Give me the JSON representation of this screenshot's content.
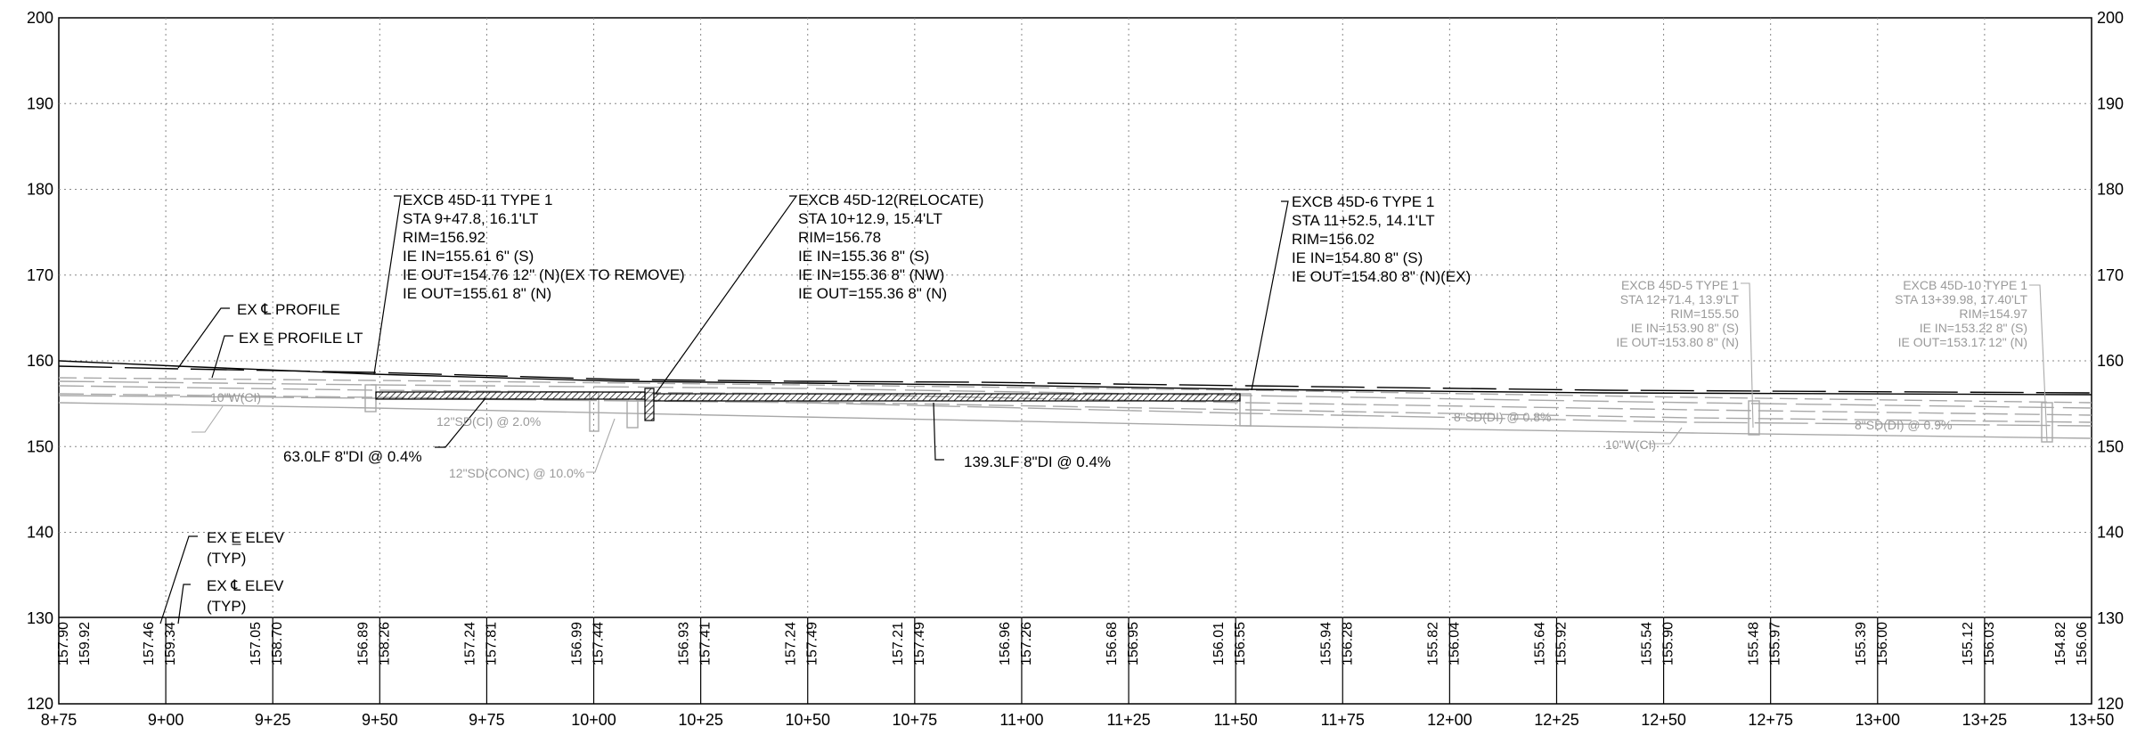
{
  "profile": {
    "elev_ticks": [
      "200",
      "190",
      "180",
      "170",
      "160",
      "150",
      "140",
      "130",
      "120"
    ],
    "stations": [
      "8+75",
      "9+00",
      "9+25",
      "9+50",
      "9+75",
      "10+00",
      "10+25",
      "10+50",
      "10+75",
      "11+00",
      "11+25",
      "11+50",
      "11+75",
      "12+00",
      "12+25",
      "12+50",
      "12+75",
      "13+00",
      "13+25",
      "13+50"
    ],
    "bottom_values": [
      [
        "157.90",
        "159.92"
      ],
      [
        "157.46",
        "159.34"
      ],
      [
        "157.05",
        "158.70"
      ],
      [
        "156.89",
        "158.26"
      ],
      [
        "157.24",
        "157.81"
      ],
      [
        "156.99",
        "157.44"
      ],
      [
        "156.93",
        "157.41"
      ],
      [
        "157.24",
        "157.49"
      ],
      [
        "157.21",
        "157.49"
      ],
      [
        "156.96",
        "157.26"
      ],
      [
        "156.68",
        "156.95"
      ],
      [
        "156.01",
        "156.55"
      ],
      [
        "155.94",
        "156.28"
      ],
      [
        "155.82",
        "156.04"
      ],
      [
        "155.64",
        "155.92"
      ],
      [
        "155.54",
        "155.90"
      ],
      [
        "155.48",
        "155.97"
      ],
      [
        "155.39",
        "156.00"
      ],
      [
        "155.12",
        "156.03"
      ],
      [
        "154.82",
        "156.06"
      ]
    ],
    "callouts": {
      "cb11": [
        "EXCB 45D-11 TYPE 1",
        "STA 9+47.8, 16.1'LT",
        "RIM=156.92",
        "IE IN=155.61 6\" (S)",
        "IE OUT=154.76 12\" (N)(EX TO REMOVE)",
        "IE OUT=155.61 8\" (N)"
      ],
      "cb12": [
        "EXCB 45D-12(RELOCATE)",
        "STA 10+12.9, 15.4'LT",
        "RIM=156.78",
        "IE IN=155.36 8\" (S)",
        "IE IN=155.36 8\" (NW)",
        "IE OUT=155.36 8\" (N)"
      ],
      "cb6": [
        "EXCB 45D-6 TYPE 1",
        "STA 11+52.5, 14.1'LT",
        "RIM=156.02",
        "IE IN=154.80 8\" (S)",
        "IE OUT=154.80 8\" (N)(EX)"
      ],
      "cb5": [
        "EXCB 45D-5 TYPE 1",
        "STA 12+71.4, 13.9'LT",
        "RIM=155.50",
        "IE IN=153.90 8\" (S)",
        "IE OUT=153.80 8\" (N)"
      ],
      "cb10": [
        "EXCB 45D-10 TYPE 1",
        "STA 13+39.98, 17.40'LT",
        "RIM=154.97",
        "IE IN=153.22 8\" (S)",
        "IE OUT=153.17 12\" (N)"
      ]
    },
    "labels": {
      "ex_cl_profile": "EX ℄ PROFILE",
      "ex_el_profile_lt": "EX E̲ PROFILE LT",
      "ex_el_elev": "EX E̲ ELEV",
      "typ1": "(TYP)",
      "ex_cl_elev": "EX ℄ ELEV",
      "typ2": "(TYP)",
      "pipe1": "63.0LF 8\"DI @ 0.4%",
      "pipe2": "139.3LF 8\"DI @ 0.4%",
      "water1": "10\"W(CI)",
      "water2": "10\"W(CI)",
      "sd1": "12\"SD(CI) @ 2.0%",
      "sd2": "12\"SD(CONC) @ 10.0%",
      "sd3": "8\"SD(DI) @ 0.8%",
      "sd4": "8\"SD(DI) @ 0.9%"
    }
  }
}
